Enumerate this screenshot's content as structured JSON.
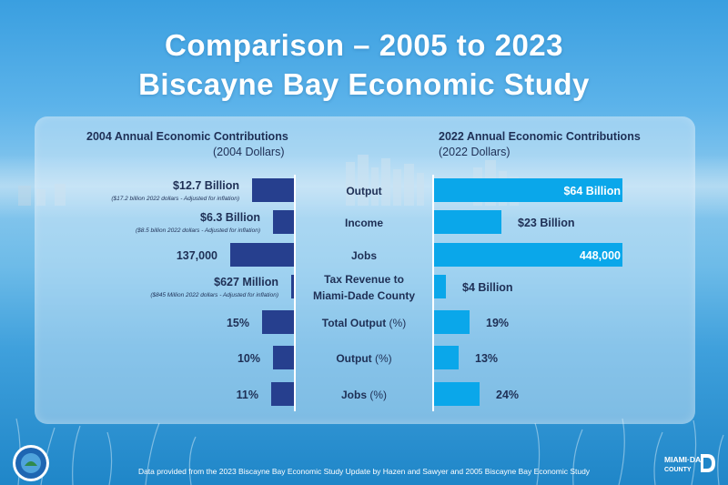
{
  "title_line1": "Comparison – 2005 to 2023",
  "title_line2": "Biscayne Bay Economic Study",
  "left_header": "2004 Annual Economic Contributions",
  "left_subheader": "(2004 Dollars)",
  "right_header": "2022 Annual Economic Contributions",
  "right_subheader": "(2022 Dollars)",
  "footer": "Data provided from the 2023 Biscayne Bay Economic Study Update by Hazen and Sawyer and 2005 Biscayne Bay Economic Study",
  "logo_text_line1": "MIAMI·DADE",
  "logo_text_line2": "COUNTY",
  "colors": {
    "left_bar": "#263f8e",
    "right_bar": "#0aa7ea",
    "text_dark": "#1e2f55",
    "text_light": "#ffffff"
  },
  "chart_data": {
    "type": "bar",
    "categories": [
      {
        "label": "Output",
        "suffix": ""
      },
      {
        "label": "Income",
        "suffix": ""
      },
      {
        "label": "Jobs",
        "suffix": ""
      },
      {
        "label": "Tax Revenue to",
        "label2": "Miami-Dade County",
        "suffix": ""
      },
      {
        "label": "Total Output",
        "suffix": " (%)"
      },
      {
        "label": "Output",
        "suffix": " (%)"
      },
      {
        "label": "Jobs",
        "suffix": " (%)"
      }
    ],
    "series": [
      {
        "name": "2004 Annual Economic Contributions",
        "values": [
          12.7,
          6.3,
          137000,
          0.627,
          15,
          10,
          11
        ],
        "labels": [
          "$12.7 Billion",
          "$6.3 Billion",
          "137,000",
          "$627 Million",
          "15%",
          "10%",
          "11%"
        ],
        "notes": [
          "($17.2 billion 2022 dollars -  Adjusted for inflation)",
          "($8.5 billion 2022 dollars -  Adjusted for inflation)",
          "",
          "($845 Million 2022 dollars -  Adjusted for inflation)",
          "",
          "",
          ""
        ]
      },
      {
        "name": "2022 Annual Economic Contributions",
        "values": [
          64,
          23,
          448000,
          4,
          19,
          13,
          24
        ],
        "labels": [
          "$64 Billion",
          "$23 Billion",
          "448,000",
          "$4 Billion",
          "19%",
          "13%",
          "24%"
        ]
      }
    ],
    "groups": [
      {
        "rows": [
          0,
          1
        ],
        "max": 64
      },
      {
        "rows": [
          2
        ],
        "max": 448000
      },
      {
        "rows": [
          3
        ],
        "max": 64
      },
      {
        "rows": [
          4,
          5,
          6
        ],
        "max": 100
      }
    ]
  }
}
